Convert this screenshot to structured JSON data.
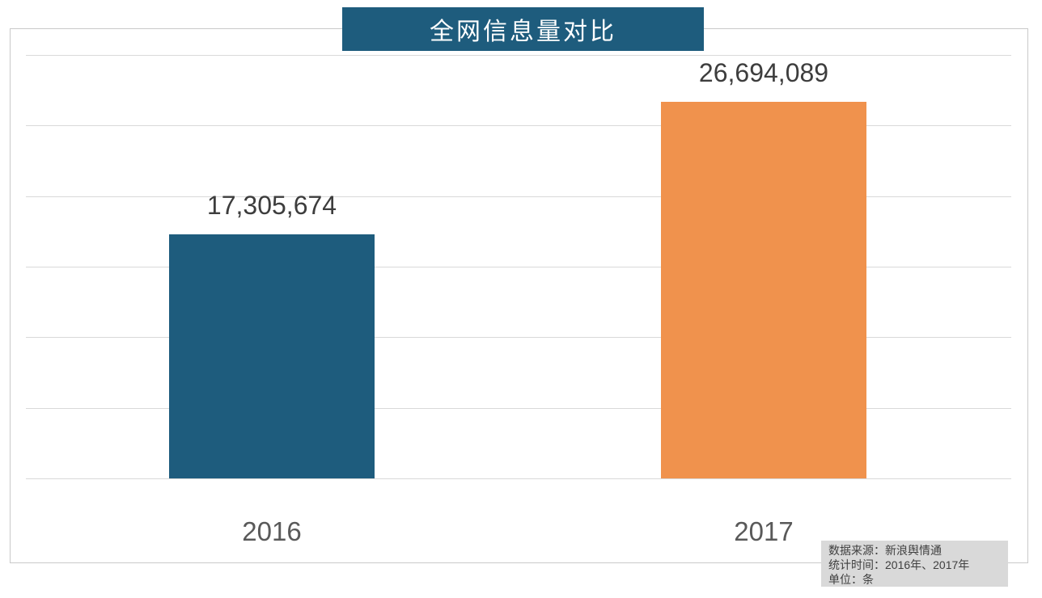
{
  "title_banner": {
    "text": "全网信息量对比",
    "bg_color": "#1e5c7d",
    "text_color": "#ffffff"
  },
  "chart_data": {
    "type": "bar",
    "title": "全网信息量对比",
    "categories": [
      "2016",
      "2017"
    ],
    "values": [
      17305674,
      26694089
    ],
    "value_labels": [
      "17,305,674",
      "26,694,089"
    ],
    "bar_colors": [
      "#1e5c7d",
      "#f0924d"
    ],
    "ylim": [
      0,
      30000000
    ],
    "gridline_step": 5000000,
    "grid": true,
    "legend": false,
    "xlabel": "",
    "ylabel": "",
    "unit": "条"
  },
  "source_box": {
    "bg_color": "#d9d9d9",
    "lines": [
      "数据来源：新浪舆情通",
      "统计时间：2016年、2017年",
      "单位：条"
    ]
  },
  "colors": {
    "gridline": "#d9d9d9",
    "frame_border": "#c9c9c9",
    "value_label": "#3d3d3d",
    "axis_label": "#595959",
    "source_text": "#3f3f3f"
  }
}
